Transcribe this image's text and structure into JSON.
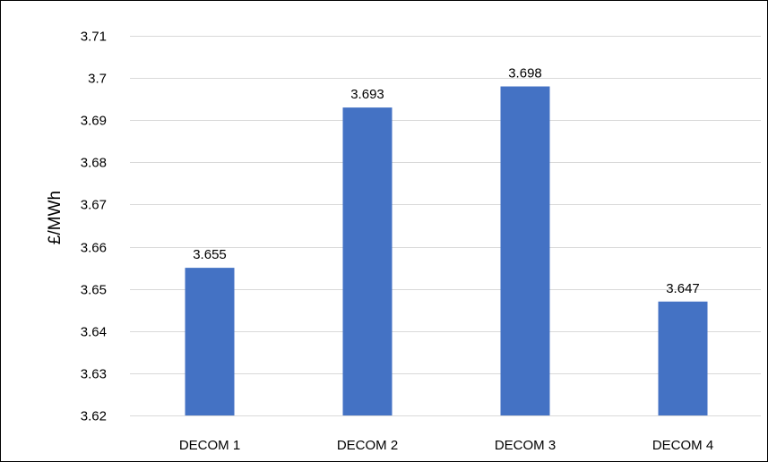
{
  "chart_data": {
    "type": "bar",
    "title": "",
    "xlabel": "",
    "ylabel": "£/MWh",
    "categories": [
      "DECOM 1",
      "DECOM 2",
      "DECOM 3",
      "DECOM 4"
    ],
    "values": [
      3.655,
      3.693,
      3.698,
      3.647
    ],
    "data_labels": [
      "3.655",
      "3.693",
      "3.698",
      "3.647"
    ],
    "ylim": [
      3.62,
      3.71
    ],
    "yticks": [
      3.62,
      3.63,
      3.64,
      3.65,
      3.66,
      3.67,
      3.68,
      3.69,
      3.7,
      3.71
    ],
    "ytick_labels": [
      "3.62",
      "3.63",
      "3.64",
      "3.65",
      "3.66",
      "3.67",
      "3.68",
      "3.69",
      "3.7",
      "3.71"
    ],
    "grid": true,
    "legend": "none",
    "bar_color": "#4472C4",
    "grid_color": "#D9D9D9"
  }
}
